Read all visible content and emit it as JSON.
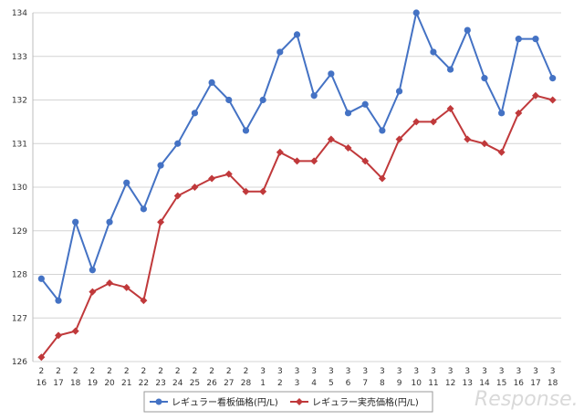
{
  "chart_data": {
    "type": "line",
    "x_months": [
      "2",
      "2",
      "2",
      "2",
      "2",
      "2",
      "2",
      "2",
      "2",
      "2",
      "2",
      "2",
      "2",
      "3",
      "3",
      "3",
      "3",
      "3",
      "3",
      "3",
      "3",
      "3",
      "3",
      "3",
      "3",
      "3",
      "3",
      "3",
      "3",
      "3",
      "3"
    ],
    "x_days": [
      "16",
      "17",
      "18",
      "19",
      "20",
      "21",
      "22",
      "23",
      "24",
      "25",
      "26",
      "27",
      "28",
      "1",
      "2",
      "3",
      "4",
      "5",
      "6",
      "7",
      "8",
      "9",
      "10",
      "11",
      "12",
      "13",
      "14",
      "15",
      "16",
      "17",
      "18"
    ],
    "ylim": [
      126,
      134
    ],
    "yticks": [
      "126",
      "127",
      "128",
      "129",
      "130",
      "131",
      "132",
      "133",
      "134"
    ],
    "grid": true,
    "legend_position": "bottom",
    "series": [
      {
        "name": "レギュラー看板価格(円/L)",
        "color": "#4472C4",
        "marker": "circle",
        "values": [
          127.9,
          127.4,
          129.2,
          128.1,
          129.2,
          130.1,
          129.5,
          130.5,
          131.0,
          131.7,
          132.4,
          132.0,
          131.3,
          132.0,
          133.1,
          133.5,
          132.1,
          132.6,
          131.7,
          131.9,
          131.3,
          132.2,
          134.0,
          133.1,
          132.7,
          133.6,
          132.5,
          131.7,
          133.4,
          133.4,
          132.5
        ]
      },
      {
        "name": "レギュラー実売価格(円/L)",
        "color": "#C0393B",
        "marker": "diamond",
        "values": [
          126.1,
          126.6,
          126.7,
          127.6,
          127.8,
          127.7,
          127.4,
          129.2,
          129.8,
          130.0,
          130.2,
          130.3,
          129.9,
          129.9,
          130.8,
          130.6,
          130.6,
          131.1,
          130.9,
          130.6,
          130.2,
          131.1,
          131.5,
          131.5,
          131.8,
          131.1,
          131.0,
          130.8,
          131.7,
          132.1,
          132.0
        ]
      }
    ]
  },
  "watermark": {
    "text": "Response."
  }
}
